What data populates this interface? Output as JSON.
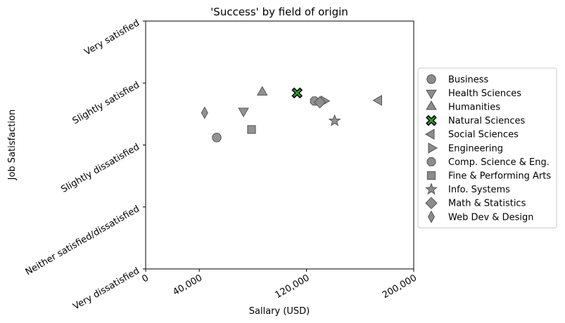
{
  "chart_data": {
    "type": "scatter",
    "title": "'Success' by field of origin",
    "xlabel": "Sallary (USD)",
    "ylabel": "Job Satisfaction",
    "xlim": [
      0,
      200000
    ],
    "ylim": [
      0,
      4
    ],
    "x_ticks": [
      {
        "value": 0,
        "label": "0"
      },
      {
        "value": 40000,
        "label": "40,000"
      },
      {
        "value": 120000,
        "label": "120,000"
      },
      {
        "value": 200000,
        "label": "200,000"
      }
    ],
    "y_ticks": [
      {
        "value": 0,
        "label": "Very dissatisfied"
      },
      {
        "value": 1,
        "label": "Neither satisfied/dissatisfied"
      },
      {
        "value": 2,
        "label": "Slightly dissatisfied"
      },
      {
        "value": 3,
        "label": "Slightly satisfied"
      },
      {
        "value": 4,
        "label": "Very satisfied"
      }
    ],
    "grid": false,
    "legend_position": "right",
    "highlight_color": "#2ca02c",
    "default_color": "#8c8c8c",
    "series": [
      {
        "name": "Business",
        "marker": "circle",
        "x": 53000,
        "y": 2.12
      },
      {
        "name": "Health Sciences",
        "marker": "triangle-down",
        "x": 73000,
        "y": 2.55
      },
      {
        "name": "Humanities",
        "marker": "triangle-up",
        "x": 87000,
        "y": 2.85
      },
      {
        "name": "Natural Sciences",
        "marker": "x",
        "x": 113000,
        "y": 2.84,
        "highlight": true
      },
      {
        "name": "Social Sciences",
        "marker": "triangle-left",
        "x": 174000,
        "y": 2.72
      },
      {
        "name": "Engineering",
        "marker": "triangle-right",
        "x": 133000,
        "y": 2.71
      },
      {
        "name": "Comp. Science & Eng.",
        "marker": "octagon",
        "x": 126000,
        "y": 2.71
      },
      {
        "name": "Fine & Performing Arts",
        "marker": "square",
        "x": 79000,
        "y": 2.25
      },
      {
        "name": "Info. Systems",
        "marker": "star",
        "x": 141000,
        "y": 2.39
      },
      {
        "name": "Math & Statistics",
        "marker": "diamond",
        "x": 130000,
        "y": 2.69
      },
      {
        "name": "Web Dev & Design",
        "marker": "thin-diamond",
        "x": 44000,
        "y": 2.52
      }
    ]
  }
}
